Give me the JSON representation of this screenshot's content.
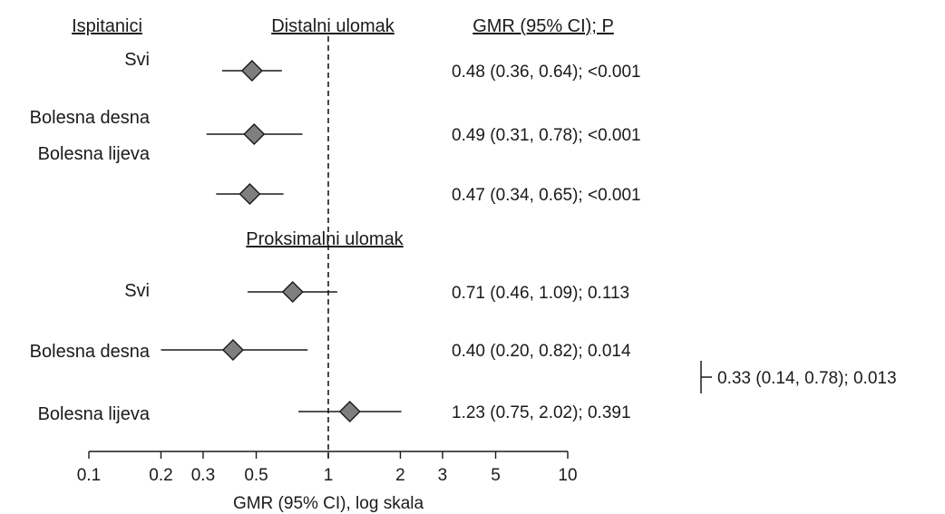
{
  "headers": {
    "subjects": "Ispitanici",
    "distal": "Distalni ulomak",
    "gmr": "GMR (95% CI); P",
    "proximal": "Proksimalni ulomak"
  },
  "comparison_text": "0.33 (0.14, 0.78); 0.013",
  "chart_data": {
    "type": "scatter",
    "scale": "log",
    "xlabel": "GMR (95% CI), log skala",
    "xlim": [
      0.1,
      10
    ],
    "reference_line": 1,
    "ticks": [
      0.1,
      0.2,
      0.3,
      0.5,
      1,
      2,
      3,
      5,
      10
    ],
    "tick_labels": [
      "0.1",
      "0.2",
      "0.3",
      "0.5",
      "1",
      "2",
      "3",
      "5",
      "10"
    ],
    "distal": [
      {
        "labels": [
          "Svi"
        ],
        "gmr": 0.48,
        "low": 0.36,
        "high": 0.64,
        "text": "0.48 (0.36, 0.64); <0.001"
      },
      {
        "labels": [
          "Bolesna desna"
        ],
        "gmr": 0.49,
        "low": 0.31,
        "high": 0.78,
        "text": "0.49 (0.31, 0.78); <0.001"
      },
      {
        "labels": [
          "Bolesna lijeva"
        ],
        "gmr": 0.47,
        "low": 0.34,
        "high": 0.65,
        "text": "0.47 (0.34, 0.65); <0.001"
      }
    ],
    "proximal": [
      {
        "labels": [
          "Svi"
        ],
        "gmr": 0.71,
        "low": 0.46,
        "high": 1.09,
        "text": "0.71 (0.46, 1.09); 0.113"
      },
      {
        "labels": [
          "Bolesna desna"
        ],
        "gmr": 0.4,
        "low": 0.2,
        "high": 0.82,
        "text": "0.40 (0.20, 0.82); 0.014"
      },
      {
        "labels": [
          "Bolesna lijeva"
        ],
        "gmr": 1.23,
        "low": 0.75,
        "high": 2.02,
        "text": "1.23 (0.75, 2.02); 0.391"
      }
    ]
  }
}
